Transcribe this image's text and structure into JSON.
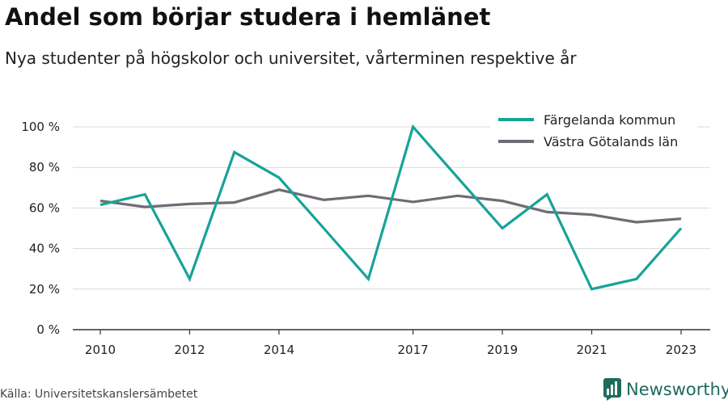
{
  "header": {
    "title": "Andel som börjar studera i hemlänet",
    "subtitle": "Nya studenter på högskolor och universitet, vårterminen respektive år"
  },
  "footer": {
    "source": "Källa: Universitetskanslersämbetet",
    "brand": "Newsworthy"
  },
  "colors": {
    "accent": "#17a398",
    "secondary": "#6e6c74",
    "grid": "#d9d9d9",
    "brand": "#1e6a5e"
  },
  "chart_data": {
    "type": "line",
    "x": [
      2010,
      2011,
      2012,
      2013,
      2014,
      2015,
      2016,
      2017,
      2018,
      2019,
      2020,
      2021,
      2022,
      2023
    ],
    "x_tick_values": [
      2010,
      2012,
      2014,
      2017,
      2019,
      2021,
      2023
    ],
    "x_tick_labels": [
      "2010",
      "2012",
      "2014",
      "2017",
      "2019",
      "2021",
      "2023"
    ],
    "y_tick_values": [
      0,
      20,
      40,
      60,
      80,
      100
    ],
    "y_tick_labels": [
      "0 %",
      "20 %",
      "40 %",
      "60 %",
      "80 %",
      "100 %"
    ],
    "ylim": [
      0,
      100
    ],
    "xlim": [
      2010,
      2023
    ],
    "grid": true,
    "legend_position": "top-right",
    "series": [
      {
        "name": "Färgelanda kommun",
        "color": "#17a398",
        "values": [
          61.5,
          66.7,
          25,
          87.5,
          75,
          50,
          25,
          100,
          75,
          50,
          66.7,
          20,
          25,
          50
        ]
      },
      {
        "name": "Västra Götalands län",
        "color": "#6e6c74",
        "values": [
          63.5,
          60.5,
          62,
          62.7,
          69,
          64,
          66,
          63,
          66,
          63.5,
          58,
          56.7,
          53,
          54.7
        ]
      }
    ]
  }
}
